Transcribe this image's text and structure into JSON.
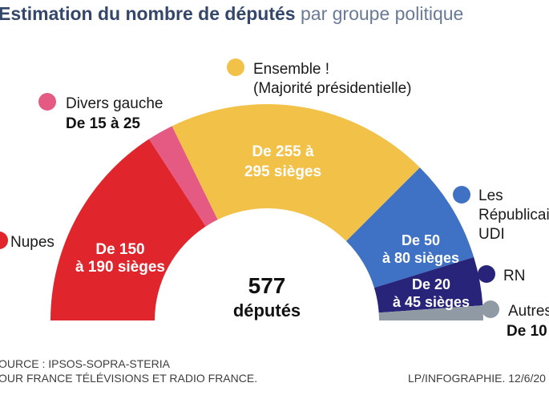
{
  "title_bold": "Estimation du nombre de députés",
  "title_light": "par groupe politique",
  "center": {
    "number": "577",
    "label": "députés"
  },
  "source_line1": "OURCE : IPSOS-SOPRA-STERIA",
  "source_line2": "OUR FRANCE TÉLÉVISIONS ET RADIO FRANCE.",
  "credit": "LP/INFOGRAPHIE.  12/6/20",
  "colors": {
    "nupes": "#e0262c",
    "divers_gauche": "#e55a83",
    "ensemble": "#f2c148",
    "republicains": "#3f72c4",
    "rn": "#27247a",
    "autres": "#8f9aa4"
  },
  "chart_data": {
    "type": "pie",
    "shape": "half-donut (hemicycle)",
    "total_seats": 577,
    "series": [
      {
        "name": "Nupes",
        "range": [
          150,
          190
        ],
        "label": "De 150 à 190 sièges",
        "color": "#e0262c"
      },
      {
        "name": "Divers gauche",
        "range": [
          15,
          25
        ],
        "label": "De 15 à 25",
        "color": "#e55a83"
      },
      {
        "name": "Ensemble ! (Majorité présidentielle)",
        "range": [
          255,
          295
        ],
        "label": "De 255 à 295 sièges",
        "color": "#f2c148"
      },
      {
        "name": "Les Républicains UDI",
        "range": [
          50,
          80
        ],
        "label": "De 50 à 80 sièges",
        "color": "#3f72c4"
      },
      {
        "name": "RN",
        "range": [
          20,
          45
        ],
        "label": "De 20 à 45 sièges",
        "color": "#27247a"
      },
      {
        "name": "Autres",
        "range": [
          10,
          null
        ],
        "label": "De 10",
        "color": "#8f9aa4"
      }
    ],
    "legend_text": {
      "divers_gauche_name": "Divers gauche",
      "divers_gauche_range": "De 15 à 25",
      "ensemble_name": "Ensemble !",
      "ensemble_sub": "(Majorité présidentielle)",
      "nupes_name": "Nupes",
      "lr_line1": "Les",
      "lr_line2": "Républicai",
      "lr_line3": "UDI",
      "rn_name": "RN",
      "autres_name": "Autres",
      "autres_range": "De 10"
    },
    "slice_labels": {
      "nupes_1": "De 150",
      "nupes_2": "à 190 sièges",
      "ensemble_1": "De 255 à",
      "ensemble_2": "295 sièges",
      "lr_1": "De 50",
      "lr_2": "à 80 sièges",
      "rn_1": "De 20",
      "rn_2": "à 45 sièges"
    }
  }
}
